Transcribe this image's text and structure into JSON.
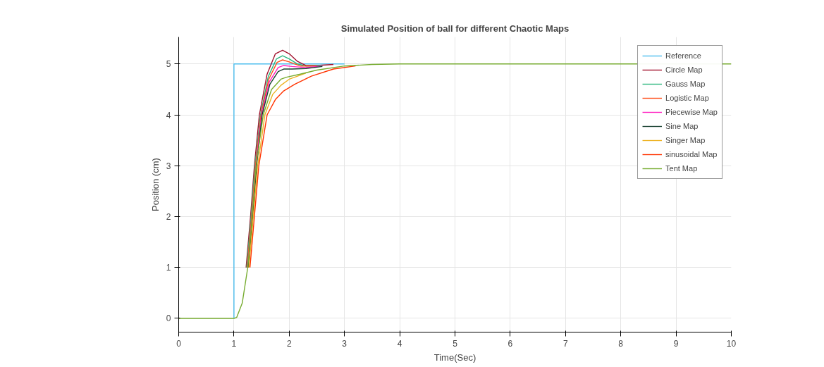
{
  "chart_data": {
    "type": "line",
    "title": "Simulated Position of ball for different Chaotic Maps",
    "xlabel": "Time(Sec)",
    "ylabel": "Position (cm)",
    "xlim": [
      0,
      10
    ],
    "ylim": [
      -0.27,
      5.53
    ],
    "xticks": [
      0,
      1,
      2,
      3,
      4,
      5,
      6,
      7,
      8,
      9,
      10
    ],
    "yticks": [
      0,
      1,
      2,
      3,
      4,
      5
    ],
    "grid": true,
    "legend": "top right",
    "line_style": "solid",
    "marker": "none",
    "series": [
      {
        "name": "Reference",
        "color": "#4dbeee",
        "x": [
          1,
          1,
          3.0
        ],
        "values": [
          0,
          5,
          5
        ]
      },
      {
        "name": "Circle Map",
        "color": "#a2142f",
        "x": [
          1.22,
          1.3,
          1.37,
          1.46,
          1.6,
          1.75,
          1.88,
          2.0,
          2.15,
          2.3,
          2.5,
          2.8
        ],
        "values": [
          1.0,
          2.0,
          3.0,
          4.0,
          4.8,
          5.2,
          5.27,
          5.2,
          5.05,
          4.97,
          4.97,
          4.99
        ]
      },
      {
        "name": "Gauss Map",
        "color": "#2cb67d",
        "x": [
          1.23,
          1.31,
          1.38,
          1.48,
          1.62,
          1.77,
          1.88,
          2.0,
          2.15,
          2.3,
          2.6
        ],
        "values": [
          1.0,
          2.0,
          3.0,
          4.0,
          4.75,
          5.1,
          5.16,
          5.1,
          5.0,
          4.96,
          4.97
        ]
      },
      {
        "name": "Logistic Map",
        "color": "#ff4f1a",
        "x": [
          1.24,
          1.32,
          1.39,
          1.49,
          1.63,
          1.78,
          1.88,
          2.0,
          2.2,
          2.5
        ],
        "values": [
          1.0,
          2.0,
          3.0,
          4.0,
          4.7,
          5.03,
          5.08,
          5.04,
          4.96,
          4.96
        ]
      },
      {
        "name": "Piecewise Map",
        "color": "#ff1fbf",
        "x": [
          1.25,
          1.33,
          1.4,
          1.5,
          1.64,
          1.8,
          1.9,
          2.05,
          2.3,
          2.6
        ],
        "values": [
          1.0,
          2.0,
          3.0,
          4.0,
          4.65,
          4.93,
          4.97,
          4.95,
          4.93,
          4.96
        ]
      },
      {
        "name": "Sine Map",
        "color": "#173f2f",
        "x": [
          1.26,
          1.34,
          1.41,
          1.51,
          1.65,
          1.8,
          1.9,
          2.05,
          2.3,
          2.6
        ],
        "values": [
          1.0,
          2.0,
          3.0,
          4.0,
          4.6,
          4.85,
          4.9,
          4.9,
          4.91,
          4.95
        ]
      },
      {
        "name": "Singer Map",
        "color": "#edb120",
        "x": [
          1.27,
          1.35,
          1.43,
          1.56,
          1.7,
          1.85,
          2.0,
          2.3
        ],
        "values": [
          1.0,
          2.0,
          3.0,
          4.0,
          4.4,
          4.58,
          4.7,
          4.82
        ]
      },
      {
        "name": "sinusoidal Map",
        "color": "#ff3300",
        "x": [
          1.29,
          1.37,
          1.45,
          1.6,
          1.75,
          1.9,
          2.1,
          2.4,
          2.8,
          3.2
        ],
        "values": [
          1.0,
          2.0,
          3.0,
          4.0,
          4.3,
          4.47,
          4.6,
          4.76,
          4.9,
          4.96
        ]
      },
      {
        "name": "Tent Map",
        "color": "#77ac30",
        "x": [
          0,
          1,
          1.05,
          1.15,
          1.25,
          1.33,
          1.4,
          1.53,
          1.68,
          1.85,
          1.95,
          2.2,
          2.5,
          3.0,
          3.5,
          4.0,
          10
        ],
        "values": [
          0,
          0,
          0.02,
          0.3,
          1.0,
          2.0,
          3.0,
          4.0,
          4.5,
          4.7,
          4.74,
          4.8,
          4.88,
          4.96,
          4.99,
          5.0,
          5.0
        ]
      }
    ]
  }
}
